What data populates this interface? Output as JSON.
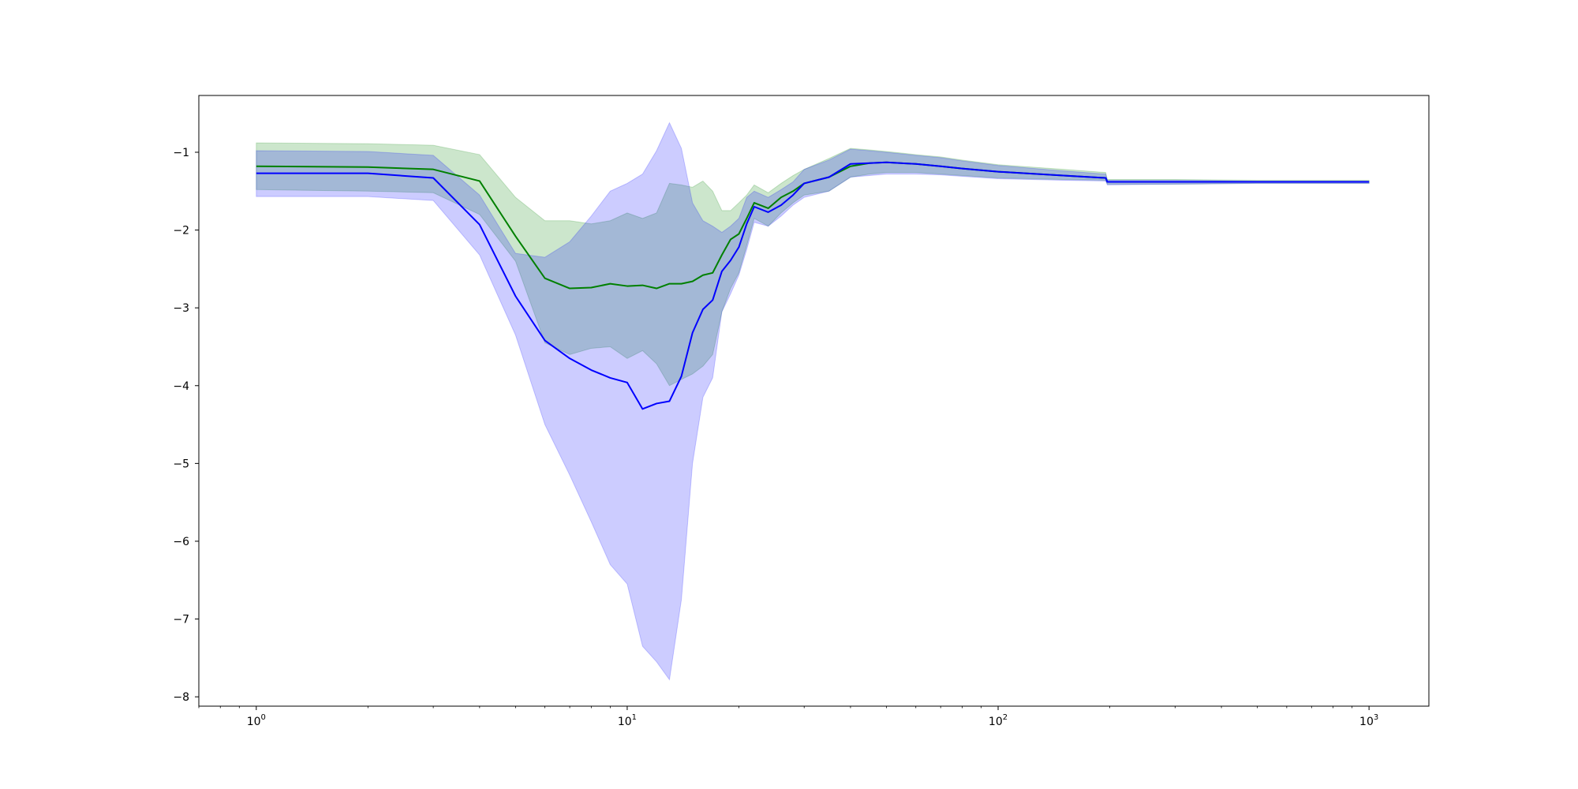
{
  "chart_data": {
    "type": "line",
    "title": "",
    "xlabel": "",
    "ylabel": "",
    "xscale": "log",
    "xlim": [
      0.7,
      1450
    ],
    "ylim": [
      -8.12,
      -0.27
    ],
    "grid": false,
    "x_ticks": [
      {
        "value": 1,
        "base": "10",
        "exp": "0"
      },
      {
        "value": 10,
        "base": "10",
        "exp": "1"
      },
      {
        "value": 100,
        "base": "10",
        "exp": "2"
      },
      {
        "value": 1000,
        "base": "10",
        "exp": "3"
      }
    ],
    "y_ticks": [
      {
        "value": -1,
        "label": "−1"
      },
      {
        "value": -2,
        "label": "−2"
      },
      {
        "value": -3,
        "label": "−3"
      },
      {
        "value": -4,
        "label": "−4"
      },
      {
        "value": -5,
        "label": "−5"
      },
      {
        "value": -6,
        "label": "−6"
      },
      {
        "value": -7,
        "label": "−7"
      },
      {
        "value": -8,
        "label": "−8"
      }
    ],
    "series": [
      {
        "color": "#008000",
        "band_color": "#008000",
        "band_opacity": 0.2,
        "x": [
          1,
          2,
          3,
          4,
          5,
          6,
          7,
          8,
          9,
          10,
          11,
          12,
          13,
          14,
          15,
          16,
          17,
          18,
          19,
          20,
          21,
          22,
          24,
          26,
          28,
          30,
          35,
          40,
          45,
          50,
          60,
          70,
          80,
          100,
          150,
          195,
          197,
          300,
          500,
          1000
        ],
        "y": [
          -1.18,
          -1.19,
          -1.22,
          -1.37,
          -2.08,
          -2.62,
          -2.75,
          -2.74,
          -2.69,
          -2.72,
          -2.71,
          -2.75,
          -2.69,
          -2.69,
          -2.66,
          -2.58,
          -2.55,
          -2.32,
          -2.12,
          -2.05,
          -1.85,
          -1.65,
          -1.72,
          -1.58,
          -1.5,
          -1.4,
          -1.32,
          -1.18,
          -1.14,
          -1.13,
          -1.15,
          -1.18,
          -1.21,
          -1.25,
          -1.3,
          -1.33,
          -1.38,
          -1.38,
          -1.38,
          -1.38
        ],
        "lower": [
          -1.48,
          -1.5,
          -1.52,
          -1.8,
          -2.4,
          -3.45,
          -3.6,
          -3.52,
          -3.5,
          -3.65,
          -3.55,
          -3.72,
          -4.0,
          -3.92,
          -3.85,
          -3.75,
          -3.6,
          -3.05,
          -2.75,
          -2.55,
          -2.2,
          -1.85,
          -1.95,
          -1.78,
          -1.65,
          -1.55,
          -1.5,
          -1.32,
          -1.28,
          -1.26,
          -1.26,
          -1.28,
          -1.3,
          -1.33,
          -1.35,
          -1.36,
          -1.41,
          -1.41,
          -1.4,
          -1.4
        ],
        "upper": [
          -0.88,
          -0.89,
          -0.91,
          -1.03,
          -1.58,
          -1.88,
          -1.88,
          -1.92,
          -1.88,
          -1.78,
          -1.85,
          -1.78,
          -1.4,
          -1.42,
          -1.45,
          -1.37,
          -1.5,
          -1.75,
          -1.75,
          -1.65,
          -1.55,
          -1.42,
          -1.52,
          -1.4,
          -1.3,
          -1.22,
          -1.08,
          -0.95,
          -0.97,
          -0.99,
          -1.03,
          -1.06,
          -1.1,
          -1.16,
          -1.22,
          -1.26,
          -1.35,
          -1.35,
          -1.36,
          -1.36
        ]
      },
      {
        "color": "#0000ff",
        "band_color": "#0000ff",
        "band_opacity": 0.2,
        "x": [
          1,
          2,
          3,
          4,
          5,
          6,
          7,
          8,
          9,
          10,
          11,
          12,
          13,
          14,
          15,
          16,
          17,
          18,
          19,
          20,
          21,
          22,
          24,
          26,
          28,
          30,
          35,
          40,
          45,
          50,
          60,
          70,
          80,
          100,
          150,
          195,
          197,
          300,
          500,
          1000
        ],
        "y": [
          -1.27,
          -1.27,
          -1.33,
          -1.93,
          -2.85,
          -3.42,
          -3.65,
          -3.8,
          -3.9,
          -3.96,
          -4.3,
          -4.23,
          -4.2,
          -3.88,
          -3.32,
          -3.02,
          -2.9,
          -2.53,
          -2.39,
          -2.22,
          -1.92,
          -1.7,
          -1.77,
          -1.68,
          -1.55,
          -1.4,
          -1.32,
          -1.15,
          -1.14,
          -1.13,
          -1.15,
          -1.18,
          -1.21,
          -1.25,
          -1.3,
          -1.33,
          -1.38,
          -1.38,
          -1.38,
          -1.38
        ],
        "lower": [
          -1.57,
          -1.57,
          -1.62,
          -2.32,
          -3.35,
          -4.5,
          -5.15,
          -5.75,
          -6.3,
          -6.55,
          -7.35,
          -7.55,
          -7.78,
          -6.75,
          -5.0,
          -4.15,
          -3.9,
          -3.05,
          -2.82,
          -2.58,
          -2.25,
          -1.9,
          -1.95,
          -1.82,
          -1.68,
          -1.58,
          -1.5,
          -1.32,
          -1.3,
          -1.28,
          -1.28,
          -1.29,
          -1.31,
          -1.34,
          -1.36,
          -1.37,
          -1.42,
          -1.41,
          -1.4,
          -1.4
        ],
        "upper": [
          -0.98,
          -0.99,
          -1.04,
          -1.55,
          -2.3,
          -2.35,
          -2.15,
          -1.82,
          -1.5,
          -1.4,
          -1.28,
          -0.98,
          -0.62,
          -0.95,
          -1.65,
          -1.88,
          -1.95,
          -2.03,
          -1.95,
          -1.85,
          -1.58,
          -1.5,
          -1.58,
          -1.48,
          -1.38,
          -1.22,
          -1.1,
          -0.96,
          -0.98,
          -1.0,
          -1.04,
          -1.07,
          -1.11,
          -1.17,
          -1.24,
          -1.28,
          -1.36,
          -1.36,
          -1.37,
          -1.37
        ]
      }
    ]
  }
}
